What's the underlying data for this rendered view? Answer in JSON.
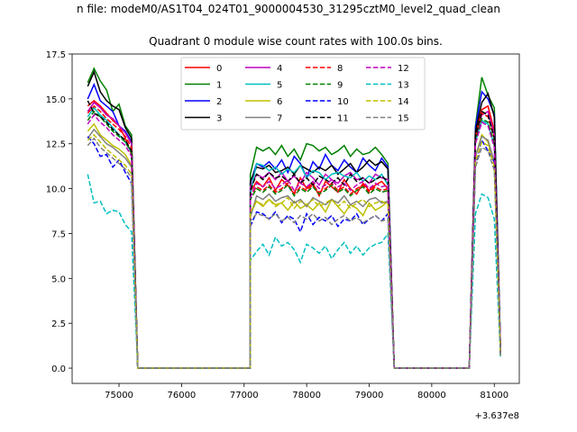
{
  "chart_data": {
    "type": "line",
    "title": "Quadrant 0 module wise count rates with 100.0s bins.",
    "suptitle": "n file: modeM0/AS1T04_024T01_9000004530_31295cztM0_level2_quad_clean",
    "xlabel": "",
    "ylabel": "",
    "offset_label": "+3.637e8",
    "xlim": [
      74250,
      81400
    ],
    "ylim": [
      -0.85,
      17.5
    ],
    "x_ticks": [
      75000,
      76000,
      77000,
      78000,
      79000,
      80000,
      81000
    ],
    "x_tick_labels": [
      "75000",
      "76000",
      "77000",
      "78000",
      "79000",
      "80000",
      "81000"
    ],
    "y_ticks": [
      0,
      2.5,
      5,
      7.5,
      10,
      12.5,
      15,
      17.5
    ],
    "y_tick_labels": [
      "0.0",
      "2.5",
      "5.0",
      "7.5",
      "10.0",
      "12.5",
      "15.0",
      "17.5"
    ],
    "grid": false,
    "legend_position": "top-center",
    "legend_columns": 4,
    "x_segments": [
      [
        74500,
        74600,
        74700,
        74800,
        74900,
        75000,
        75100,
        75200,
        75300
      ],
      [
        75300,
        77100
      ],
      [
        77100,
        77200,
        77300,
        77400,
        77500,
        77600,
        77700,
        77800,
        77900,
        78000,
        78100,
        78200,
        78300,
        78400,
        78500,
        78600,
        78700,
        78800,
        78900,
        79000,
        79100,
        79200,
        79300,
        79400
      ],
      [
        79400,
        80600
      ],
      [
        80600,
        80700,
        80800,
        80900,
        81000,
        81100
      ]
    ],
    "series": [
      {
        "name": "0",
        "color": "#ff0000",
        "dash": "solid",
        "segments": [
          [
            14.6,
            14.9,
            14.6,
            14.2,
            13.8,
            13.5,
            12.8,
            11.9,
            0.0
          ],
          [
            0.0,
            0.0
          ],
          [
            9.8,
            10.4,
            10.1,
            10.6,
            9.9,
            10.5,
            10.2,
            9.7,
            10.6,
            10.0,
            10.3,
            9.6,
            10.4,
            10.1,
            9.8,
            10.5,
            10.0,
            9.7,
            10.3,
            9.9,
            10.2,
            10.4,
            10.0,
            0.0
          ],
          [
            0.0,
            0.0
          ],
          [
            0.0,
            13.0,
            14.4,
            14.6,
            13.2,
            0.9
          ]
        ]
      },
      {
        "name": "1",
        "color": "#008000",
        "dash": "solid",
        "segments": [
          [
            15.9,
            16.7,
            16.0,
            15.5,
            14.3,
            14.7,
            13.5,
            13.0,
            0.0
          ],
          [
            0.0,
            0.0
          ],
          [
            10.8,
            12.3,
            12.1,
            12.3,
            11.9,
            12.4,
            11.8,
            12.2,
            11.6,
            12.5,
            12.4,
            12.1,
            12.3,
            11.9,
            12.1,
            12.4,
            11.8,
            12.2,
            11.9,
            12.0,
            12.3,
            11.9,
            11.4,
            0.0
          ],
          [
            0.0,
            0.0
          ],
          [
            0.0,
            13.5,
            16.2,
            15.2,
            14.5,
            1.0
          ]
        ]
      },
      {
        "name": "2",
        "color": "#0000ff",
        "dash": "solid",
        "segments": [
          [
            15.0,
            15.8,
            14.9,
            14.6,
            14.3,
            13.5,
            13.2,
            12.6,
            0.0
          ],
          [
            0.0,
            0.0
          ],
          [
            10.3,
            11.4,
            11.2,
            11.5,
            11.1,
            11.6,
            10.9,
            11.8,
            11.4,
            10.6,
            11.5,
            11.1,
            11.9,
            11.3,
            11.0,
            11.6,
            11.2,
            10.9,
            11.7,
            11.3,
            11.0,
            11.7,
            11.2,
            0.0
          ],
          [
            0.0,
            0.0
          ],
          [
            0.0,
            13.4,
            15.4,
            15.0,
            14.1,
            0.9
          ]
        ]
      },
      {
        "name": "3",
        "color": "#000000",
        "dash": "solid",
        "segments": [
          [
            15.7,
            16.5,
            15.4,
            14.9,
            14.6,
            14.4,
            13.4,
            12.8,
            0.0
          ],
          [
            0.0,
            0.0
          ],
          [
            10.4,
            11.2,
            11.1,
            11.3,
            10.9,
            11.0,
            11.2,
            10.8,
            11.3,
            11.1,
            10.9,
            11.2,
            11.0,
            11.3,
            10.8,
            11.1,
            11.4,
            10.9,
            11.2,
            11.6,
            11.3,
            11.5,
            11.1,
            0.0
          ],
          [
            0.0,
            0.0
          ],
          [
            0.0,
            13.2,
            14.8,
            15.3,
            14.0,
            0.9
          ]
        ]
      },
      {
        "name": "4",
        "color": "#bf00bf",
        "dash": "solid",
        "segments": [
          [
            14.3,
            14.8,
            14.5,
            14.1,
            13.9,
            13.5,
            13.1,
            12.5,
            0.0
          ],
          [
            0.0,
            0.0
          ],
          [
            10.1,
            10.8,
            10.6,
            10.9,
            10.5,
            10.9,
            10.4,
            10.7,
            10.3,
            10.9,
            10.6,
            10.2,
            10.8,
            10.5,
            10.3,
            10.7,
            10.9,
            10.5,
            10.6,
            10.3,
            10.8,
            10.6,
            10.5,
            0.0
          ],
          [
            0.0,
            0.0
          ],
          [
            0.0,
            12.8,
            14.1,
            14.3,
            13.0,
            0.9
          ]
        ]
      },
      {
        "name": "5",
        "color": "#00bfbf",
        "dash": "solid",
        "segments": [
          [
            14.0,
            14.5,
            14.1,
            13.8,
            13.4,
            13.0,
            12.6,
            12.0,
            0.0
          ],
          [
            0.0,
            0.0
          ],
          [
            9.7,
            11.4,
            11.3,
            11.0,
            11.2,
            10.8,
            11.1,
            10.9,
            11.3,
            10.6,
            11.0,
            10.9,
            10.5,
            10.8,
            10.9,
            10.7,
            10.6,
            10.9,
            10.4,
            10.7,
            10.5,
            10.8,
            10.2,
            0.0
          ],
          [
            0.0,
            0.0
          ],
          [
            0.0,
            12.6,
            13.8,
            13.6,
            12.4,
            0.8
          ]
        ]
      },
      {
        "name": "6",
        "color": "#bfbf00",
        "dash": "solid",
        "segments": [
          [
            13.2,
            13.6,
            13.0,
            12.7,
            12.4,
            12.2,
            11.9,
            11.3,
            0.0
          ],
          [
            0.0,
            0.0
          ],
          [
            8.6,
            9.3,
            9.0,
            9.4,
            9.1,
            9.2,
            8.8,
            9.3,
            8.9,
            9.1,
            8.8,
            9.2,
            8.7,
            9.4,
            9.0,
            8.6,
            9.1,
            8.9,
            8.5,
            9.2,
            8.8,
            9.0,
            9.3,
            0.0
          ],
          [
            0.0,
            0.0
          ],
          [
            0.0,
            11.8,
            13.0,
            12.6,
            11.4,
            0.7
          ]
        ]
      },
      {
        "name": "7",
        "color": "#808080",
        "dash": "solid",
        "segments": [
          [
            12.8,
            13.3,
            12.9,
            12.5,
            12.3,
            12.0,
            11.7,
            11.2,
            0.0
          ],
          [
            0.0,
            0.0
          ],
          [
            8.4,
            9.6,
            9.4,
            9.7,
            9.3,
            9.5,
            9.6,
            9.2,
            9.4,
            9.0,
            9.5,
            9.3,
            9.1,
            9.4,
            9.2,
            9.6,
            9.1,
            9.3,
            9.0,
            9.4,
            9.5,
            9.2,
            9.3,
            0.0
          ],
          [
            0.0,
            0.0
          ],
          [
            0.0,
            11.8,
            12.9,
            12.7,
            11.5,
            0.7
          ]
        ]
      },
      {
        "name": "8",
        "color": "#ff0000",
        "dash": "dashed",
        "segments": [
          [
            14.2,
            14.6,
            14.3,
            13.9,
            13.6,
            13.3,
            12.9,
            12.3,
            0.0
          ],
          [
            0.0,
            0.0
          ],
          [
            9.6,
            10.1,
            9.9,
            10.2,
            9.8,
            10.0,
            10.3,
            9.7,
            10.1,
            9.9,
            10.2,
            9.8,
            10.0,
            10.3,
            9.9,
            10.1,
            9.7,
            10.0,
            10.2,
            9.8,
            10.1,
            9.9,
            10.0,
            0.0
          ],
          [
            0.0,
            0.0
          ],
          [
            0.0,
            12.9,
            14.2,
            14.0,
            12.8,
            0.8
          ]
        ]
      },
      {
        "name": "9",
        "color": "#008000",
        "dash": "dashed",
        "segments": [
          [
            13.8,
            14.3,
            14.0,
            13.6,
            13.2,
            12.9,
            12.6,
            12.0,
            0.0
          ],
          [
            0.0,
            0.0
          ],
          [
            9.4,
            10.0,
            9.8,
            10.1,
            9.7,
            9.9,
            10.2,
            9.6,
            10.0,
            9.8,
            10.1,
            9.7,
            9.9,
            10.2,
            9.8,
            10.0,
            9.6,
            9.9,
            10.1,
            9.7,
            10.0,
            9.8,
            9.9,
            0.0
          ],
          [
            0.0,
            0.0
          ],
          [
            0.0,
            12.6,
            13.9,
            13.7,
            12.5,
            0.8
          ]
        ]
      },
      {
        "name": "10",
        "color": "#0000ff",
        "dash": "dashed",
        "segments": [
          [
            12.9,
            12.5,
            11.8,
            11.9,
            11.2,
            11.6,
            10.9,
            10.3,
            0.0
          ],
          [
            0.0,
            0.0
          ],
          [
            7.9,
            8.7,
            8.6,
            8.3,
            8.7,
            8.1,
            8.5,
            8.3,
            7.6,
            8.6,
            8.0,
            8.4,
            8.2,
            8.5,
            7.9,
            8.3,
            8.2,
            8.6,
            8.0,
            8.3,
            8.5,
            8.2,
            8.6,
            0.0
          ],
          [
            0.0,
            0.0
          ],
          [
            0.0,
            11.3,
            12.7,
            12.1,
            11.5,
            0.7
          ]
        ]
      },
      {
        "name": "11",
        "color": "#000000",
        "dash": "dashed",
        "segments": [
          [
            14.9,
            14.2,
            14.0,
            13.7,
            13.3,
            13.0,
            12.7,
            12.1,
            0.0
          ],
          [
            0.0,
            0.0
          ],
          [
            9.9,
            10.8,
            10.5,
            10.9,
            10.6,
            10.7,
            10.4,
            10.8,
            10.3,
            10.6,
            10.2,
            10.7,
            10.5,
            10.3,
            10.6,
            10.2,
            10.8,
            10.4,
            10.6,
            10.3,
            10.5,
            10.7,
            10.4,
            0.0
          ],
          [
            0.0,
            0.0
          ],
          [
            0.0,
            12.9,
            14.3,
            14.1,
            12.8,
            0.8
          ]
        ]
      },
      {
        "name": "12",
        "color": "#bf00bf",
        "dash": "dashed",
        "segments": [
          [
            13.6,
            14.1,
            13.7,
            13.4,
            13.0,
            12.7,
            12.4,
            11.8,
            0.0
          ],
          [
            0.0,
            0.0
          ],
          [
            9.5,
            10.3,
            10.1,
            10.4,
            10.0,
            10.2,
            10.5,
            9.9,
            10.3,
            10.1,
            10.4,
            10.0,
            10.2,
            10.5,
            10.1,
            10.3,
            9.9,
            10.2,
            10.4,
            10.0,
            10.3,
            10.1,
            10.2,
            0.0
          ],
          [
            0.0,
            0.0
          ],
          [
            0.0,
            12.5,
            13.7,
            13.5,
            12.3,
            0.8
          ]
        ]
      },
      {
        "name": "13",
        "color": "#00bfbf",
        "dash": "dashed",
        "segments": [
          [
            10.8,
            9.2,
            9.3,
            8.6,
            8.8,
            8.7,
            8.0,
            7.6,
            0.0
          ],
          [
            0.0,
            0.0
          ],
          [
            6.0,
            6.5,
            6.9,
            6.3,
            7.3,
            6.8,
            7.0,
            6.6,
            5.9,
            6.9,
            6.7,
            6.4,
            6.8,
            6.1,
            6.6,
            7.0,
            6.4,
            6.8,
            6.3,
            6.7,
            6.9,
            7.0,
            7.5,
            0.0
          ],
          [
            0.0,
            0.0
          ],
          [
            0.0,
            8.6,
            9.7,
            9.5,
            8.3,
            0.6
          ]
        ]
      },
      {
        "name": "14",
        "color": "#bfbf00",
        "dash": "dashed",
        "segments": [
          [
            12.7,
            13.0,
            12.6,
            12.2,
            11.9,
            11.6,
            11.3,
            10.8,
            0.0
          ],
          [
            0.0,
            0.0
          ],
          [
            8.7,
            9.3,
            9.1,
            9.4,
            9.0,
            9.2,
            9.5,
            8.9,
            9.3,
            9.1,
            9.4,
            9.0,
            9.2,
            9.4,
            9.0,
            9.3,
            8.9,
            9.2,
            9.4,
            9.0,
            9.2,
            9.3,
            9.1,
            0.0
          ],
          [
            0.0,
            0.0
          ],
          [
            0.0,
            11.5,
            12.6,
            12.4,
            11.2,
            0.7
          ]
        ]
      },
      {
        "name": "15",
        "color": "#808080",
        "dash": "dashed",
        "segments": [
          [
            12.4,
            12.8,
            12.3,
            12.0,
            11.7,
            11.4,
            11.1,
            10.6,
            0.0
          ],
          [
            0.0,
            0.0
          ],
          [
            8.2,
            8.6,
            8.5,
            8.3,
            8.6,
            8.2,
            8.4,
            8.1,
            8.5,
            8.3,
            8.6,
            8.2,
            8.4,
            8.0,
            8.3,
            8.5,
            8.2,
            8.4,
            8.1,
            8.3,
            8.5,
            8.2,
            8.3,
            0.0
          ],
          [
            0.0,
            0.0
          ],
          [
            0.0,
            11.2,
            12.3,
            12.1,
            11.0,
            0.7
          ]
        ]
      }
    ]
  }
}
